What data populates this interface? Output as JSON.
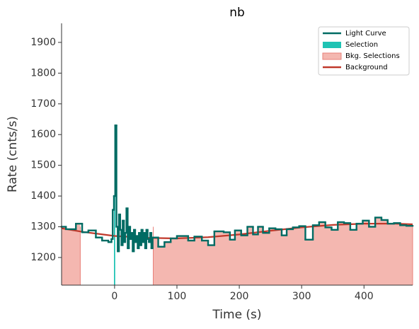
{
  "chart_data": {
    "type": "step",
    "title": "nb",
    "xlabel": "Time (s)",
    "ylabel": "Rate (cnts/s)",
    "xlim": [
      -85,
      478
    ],
    "ylim": [
      1110,
      1962
    ],
    "xticks": [
      0,
      100,
      200,
      300,
      400
    ],
    "yticks": [
      1200,
      1300,
      1400,
      1500,
      1600,
      1700,
      1800,
      1900
    ],
    "legend": "upper right",
    "light_curve": {
      "name": "Light Curve",
      "color": "#006b63",
      "bins": [
        -85,
        -78,
        -62,
        -52,
        -42,
        -30,
        -20,
        -10,
        -5,
        -3,
        -1,
        1,
        3,
        5,
        7,
        9,
        11,
        13,
        15,
        17,
        19,
        21,
        23,
        25,
        27,
        29,
        31,
        33,
        35,
        37,
        39,
        41,
        43,
        45,
        47,
        49,
        51,
        53,
        55,
        57,
        59,
        61,
        70,
        80,
        90,
        100,
        118,
        128,
        140,
        150,
        160,
        175,
        185,
        193,
        203,
        213,
        222,
        230,
        238,
        248,
        258,
        268,
        276,
        286,
        296,
        306,
        318,
        328,
        338,
        348,
        358,
        368,
        378,
        388,
        398,
        408,
        418,
        428,
        438,
        448,
        458,
        468,
        478
      ],
      "values": [
        1300,
        1292,
        1310,
        1282,
        1288,
        1265,
        1255,
        1250,
        1260,
        1355,
        1400,
        1630,
        1300,
        1220,
        1340,
        1290,
        1240,
        1320,
        1250,
        1280,
        1360,
        1230,
        1300,
        1260,
        1280,
        1220,
        1290,
        1250,
        1270,
        1230,
        1280,
        1240,
        1290,
        1250,
        1280,
        1230,
        1290,
        1260,
        1250,
        1280,
        1230,
        1265,
        1235,
        1250,
        1262,
        1270,
        1255,
        1268,
        1255,
        1240,
        1285,
        1282,
        1258,
        1288,
        1272,
        1300,
        1275,
        1300,
        1280,
        1295,
        1292,
        1272,
        1292,
        1298,
        1302,
        1258,
        1305,
        1315,
        1298,
        1290,
        1315,
        1312,
        1290,
        1310,
        1320,
        1300,
        1330,
        1322,
        1310,
        1312,
        1305,
        1303
      ]
    },
    "selection": {
      "name": "Selection",
      "color": "#1fc3b4",
      "range": [
        -1,
        1
      ]
    },
    "bkg_selections": {
      "name": "Bkg. Selections",
      "color": "#f4b7b0",
      "edge": "#e8807a",
      "ranges": [
        [
          -85,
          -55
        ],
        [
          62,
          478
        ]
      ]
    },
    "background": {
      "name": "Background",
      "color": "#c0392b",
      "x": [
        -85,
        -50,
        0,
        50,
        100,
        150,
        200,
        250,
        300,
        350,
        400,
        450,
        478
      ],
      "values": [
        1295,
        1283,
        1270,
        1264,
        1262,
        1266,
        1275,
        1287,
        1298,
        1306,
        1310,
        1310,
        1308
      ]
    }
  }
}
